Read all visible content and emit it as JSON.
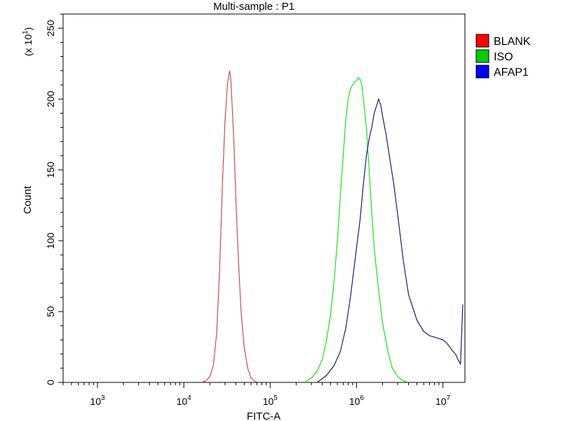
{
  "chart_data": {
    "type": "line",
    "title": "Multi-sample : P1",
    "xlabel": "FITC-A",
    "ylabel": "Count",
    "y_multiplier_label": "(x 10",
    "y_multiplier_exp": "1",
    "x_scale": "log",
    "xlim": [
      400,
      18000000
    ],
    "ylim": [
      0,
      260
    ],
    "y_ticks": [
      0,
      50,
      100,
      150,
      200,
      250
    ],
    "x_ticks": [
      {
        "base": "10",
        "exp": "3",
        "value": 1000
      },
      {
        "base": "10",
        "exp": "4",
        "value": 10000
      },
      {
        "base": "10",
        "exp": "5",
        "value": 100000
      },
      {
        "base": "10",
        "exp": "6",
        "value": 1000000
      },
      {
        "base": "10",
        "exp": "7",
        "value": 10000000
      }
    ],
    "grid": false,
    "legend_position": "top-right",
    "series": [
      {
        "name": "BLANK",
        "color": "#c0504d",
        "legend_color": "#ff0000",
        "x": [
          16000,
          18000,
          20000,
          22000,
          24000,
          26000,
          28000,
          30000,
          32000,
          33000,
          34000,
          35000,
          36000,
          38000,
          40000,
          43000,
          46000,
          50000,
          55000,
          60000,
          66000,
          72000
        ],
        "y": [
          0,
          1,
          4,
          12,
          35,
          80,
          140,
          185,
          210,
          216,
          220,
          214,
          200,
          170,
          130,
          85,
          50,
          25,
          10,
          3,
          1,
          0
        ]
      },
      {
        "name": "ISO",
        "color": "#22dd22",
        "legend_color": "#00cc00",
        "x": [
          250000,
          300000,
          350000,
          400000,
          450000,
          500000,
          550000,
          600000,
          650000,
          700000,
          750000,
          800000,
          850000,
          900000,
          950000,
          1000000,
          1050000,
          1100000,
          1150000,
          1200000,
          1300000,
          1400000,
          1500000,
          1600000,
          1800000,
          2000000,
          2300000,
          2600000,
          3000000,
          3500000,
          4000000
        ],
        "y": [
          0,
          3,
          8,
          16,
          30,
          48,
          72,
          100,
          132,
          160,
          185,
          200,
          207,
          210,
          212,
          213,
          215,
          214,
          210,
          200,
          180,
          150,
          120,
          95,
          65,
          42,
          22,
          10,
          4,
          1,
          0
        ]
      },
      {
        "name": "AFAP1",
        "color": "#1a1a7a",
        "legend_color": "#0000ff",
        "x": [
          350000,
          450000,
          550000,
          650000,
          750000,
          850000,
          1000000,
          1100000,
          1200000,
          1300000,
          1400000,
          1500000,
          1600000,
          1700000,
          1800000,
          1900000,
          2000000,
          2200000,
          2400000,
          2700000,
          3000000,
          3500000,
          4000000,
          5000000,
          6000000,
          7000000,
          8000000,
          9000000,
          10000000,
          11000000,
          12000000,
          13000000,
          14000000,
          15000000,
          16000000,
          17000000
        ],
        "y": [
          0,
          5,
          12,
          22,
          38,
          60,
          95,
          115,
          140,
          160,
          172,
          180,
          190,
          195,
          200,
          196,
          188,
          175,
          160,
          140,
          118,
          85,
          62,
          44,
          36,
          33,
          32,
          31,
          30,
          28,
          25,
          22,
          20,
          16,
          13,
          55
        ]
      }
    ]
  }
}
